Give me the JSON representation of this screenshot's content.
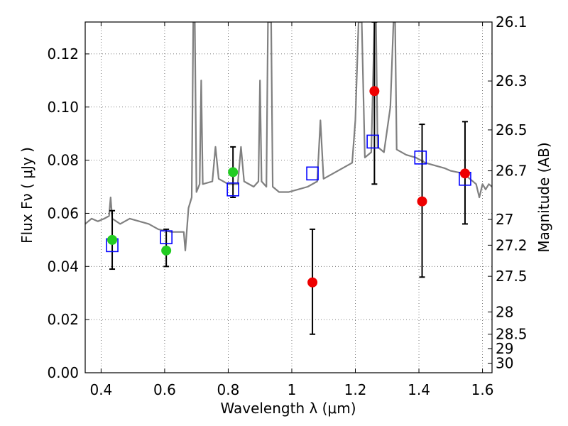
{
  "chart_data": {
    "type": "scatter",
    "xlabel": "Wavelength  λ (μm)",
    "ylabel": "Flux  Fν  ( μJy )",
    "ylabel_right": "Magnitude (AB)",
    "xlim": [
      0.35,
      1.63
    ],
    "ylim": [
      0.0,
      0.132
    ],
    "grid": true,
    "x_ticks": [
      0.4,
      0.6,
      0.8,
      1.0,
      1.2,
      1.4,
      1.6
    ],
    "x_tick_labels": [
      "0.4",
      "0.6",
      "0.8",
      "1",
      "1.2",
      "1.4",
      "1.6"
    ],
    "y_ticks": [
      0.0,
      0.02,
      0.04,
      0.06,
      0.08,
      0.1,
      0.12
    ],
    "y_tick_labels": [
      "0.00",
      "0.02",
      "0.04",
      "0.06",
      "0.08",
      "0.10",
      "0.12"
    ],
    "right_ticks": [
      {
        "label": "26.1",
        "flux": 0.132
      },
      {
        "label": "26.3",
        "flux": 0.1098
      },
      {
        "label": "26.5",
        "flux": 0.0914
      },
      {
        "label": "26.7",
        "flux": 0.076
      },
      {
        "label": "27",
        "flux": 0.0577
      },
      {
        "label": "27.2",
        "flux": 0.048
      },
      {
        "label": "27.5",
        "flux": 0.0363
      },
      {
        "label": "28",
        "flux": 0.0229
      },
      {
        "label": "28.5",
        "flux": 0.0145
      },
      {
        "label": "29",
        "flux": 0.0091
      },
      {
        "label": "30",
        "flux": 0.0036
      }
    ],
    "spectrum": {
      "color": "#808080",
      "points": [
        [
          0.35,
          0.056
        ],
        [
          0.37,
          0.058
        ],
        [
          0.39,
          0.057
        ],
        [
          0.41,
          0.058
        ],
        [
          0.425,
          0.059
        ],
        [
          0.43,
          0.066
        ],
        [
          0.435,
          0.058
        ],
        [
          0.46,
          0.056
        ],
        [
          0.49,
          0.058
        ],
        [
          0.52,
          0.057
        ],
        [
          0.55,
          0.056
        ],
        [
          0.58,
          0.054
        ],
        [
          0.62,
          0.053
        ],
        [
          0.64,
          0.053
        ],
        [
          0.66,
          0.053
        ],
        [
          0.665,
          0.046
        ],
        [
          0.675,
          0.062
        ],
        [
          0.685,
          0.066
        ],
        [
          0.69,
          0.132
        ],
        [
          0.695,
          0.132
        ],
        [
          0.7,
          0.068
        ],
        [
          0.71,
          0.071
        ],
        [
          0.715,
          0.11
        ],
        [
          0.72,
          0.071
        ],
        [
          0.75,
          0.072
        ],
        [
          0.76,
          0.085
        ],
        [
          0.77,
          0.073
        ],
        [
          0.8,
          0.071
        ],
        [
          0.83,
          0.071
        ],
        [
          0.84,
          0.085
        ],
        [
          0.85,
          0.072
        ],
        [
          0.88,
          0.07
        ],
        [
          0.895,
          0.072
        ],
        [
          0.9,
          0.11
        ],
        [
          0.905,
          0.072
        ],
        [
          0.92,
          0.07
        ],
        [
          0.925,
          0.132
        ],
        [
          0.935,
          0.132
        ],
        [
          0.94,
          0.07
        ],
        [
          0.96,
          0.068
        ],
        [
          0.99,
          0.068
        ],
        [
          1.02,
          0.069
        ],
        [
          1.05,
          0.07
        ],
        [
          1.08,
          0.072
        ],
        [
          1.09,
          0.095
        ],
        [
          1.1,
          0.073
        ],
        [
          1.13,
          0.075
        ],
        [
          1.16,
          0.077
        ],
        [
          1.19,
          0.079
        ],
        [
          1.2,
          0.095
        ],
        [
          1.21,
          0.132
        ],
        [
          1.22,
          0.132
        ],
        [
          1.23,
          0.081
        ],
        [
          1.25,
          0.083
        ],
        [
          1.26,
          0.132
        ],
        [
          1.265,
          0.132
        ],
        [
          1.27,
          0.085
        ],
        [
          1.29,
          0.083
        ],
        [
          1.31,
          0.1
        ],
        [
          1.32,
          0.132
        ],
        [
          1.325,
          0.132
        ],
        [
          1.33,
          0.084
        ],
        [
          1.36,
          0.082
        ],
        [
          1.39,
          0.081
        ],
        [
          1.42,
          0.079
        ],
        [
          1.45,
          0.078
        ],
        [
          1.48,
          0.077
        ],
        [
          1.5,
          0.076
        ],
        [
          1.54,
          0.075
        ],
        [
          1.56,
          0.073
        ],
        [
          1.58,
          0.071
        ],
        [
          1.59,
          0.066
        ],
        [
          1.6,
          0.071
        ],
        [
          1.61,
          0.069
        ],
        [
          1.62,
          0.071
        ],
        [
          1.63,
          0.07
        ]
      ]
    },
    "model_points": {
      "marker": "open-square",
      "color": "#0000ff",
      "x": [
        0.435,
        0.605,
        0.815,
        1.065,
        1.255,
        1.405,
        1.545
      ],
      "y": [
        0.048,
        0.051,
        0.069,
        0.075,
        0.087,
        0.081,
        0.073
      ]
    },
    "green_points": {
      "marker": "filled-circle",
      "color": "#22cc22",
      "x": [
        0.435,
        0.605,
        0.815
      ],
      "y": [
        0.05,
        0.046,
        0.0755
      ],
      "err_low": [
        0.039,
        0.04,
        0.066
      ],
      "err_high": [
        0.061,
        0.054,
        0.085
      ]
    },
    "red_points": {
      "marker": "filled-circle",
      "color": "#ee0000",
      "x": [
        1.065,
        1.26,
        1.41,
        1.545
      ],
      "y": [
        0.034,
        0.106,
        0.0645,
        0.075
      ],
      "err_low": [
        0.0145,
        0.071,
        0.036,
        0.056
      ],
      "err_high": [
        0.054,
        0.132,
        0.0935,
        0.0945
      ]
    }
  }
}
